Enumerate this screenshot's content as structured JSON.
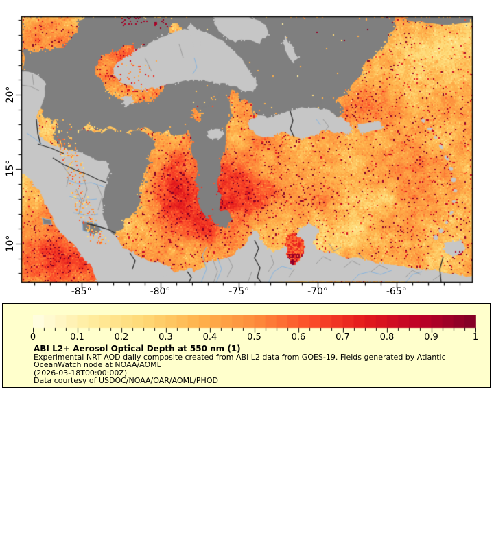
{
  "map": {
    "extent": {
      "lon_min": -88.83,
      "lon_max": -60.16,
      "lat_min": 7.37,
      "lat_max": 25.25
    },
    "x_ticks": [
      {
        "lon": -85,
        "label": "-85°"
      },
      {
        "lon": -80,
        "label": "-80°"
      },
      {
        "lon": -75,
        "label": "-75°"
      },
      {
        "lon": -70,
        "label": "-70°"
      },
      {
        "lon": -65,
        "label": "-65°"
      }
    ],
    "y_ticks": [
      {
        "lat": 20,
        "label": "20°"
      },
      {
        "lat": 15,
        "label": "15°"
      },
      {
        "lat": 10,
        "label": "10°"
      }
    ],
    "minor_tick_step_deg": 1,
    "colors": {
      "frame": "#000000",
      "no_data_gray": "#7f7f7f",
      "land_gray": "#c6c6c6",
      "country_border": "#2b2b2b",
      "admin_border": "#9a9a9a",
      "river_blue": "#85b4e0",
      "background": "#ffffff"
    }
  },
  "legend": {
    "background": "#ffffcc",
    "border_color": "#000000",
    "colorbar": {
      "min": 0,
      "max": 1,
      "block_count": 40,
      "tick_interval": 0.025,
      "labels": [
        "0",
        "0.1",
        "0.2",
        "0.3",
        "0.4",
        "0.5",
        "0.6",
        "0.7",
        "0.8",
        "0.9",
        "1"
      ],
      "label_values": [
        0,
        0.1,
        0.2,
        0.3,
        0.4,
        0.5,
        0.6,
        0.7,
        0.8,
        0.9,
        1
      ],
      "palette_name": "YlOrRd",
      "palette_stops": [
        "#ffffe5",
        "#ffeda0",
        "#fed976",
        "#feb24c",
        "#fd8d3c",
        "#fc4e2a",
        "#e31a1c",
        "#bd0026",
        "#800026"
      ]
    },
    "title": "ABI L2+ Aerosol Optical Depth at 550 nm (1)",
    "lines": [
      "Experimental NRT AOD daily composite created from ABI L2 data from GOES-19. Fields generated by Atlantic",
      "OceanWatch node at NOAA/AOML",
      "(2026-03-18T00:00:00Z)",
      "Data courtesy of USDOC/NOAA/OAR/AOML/PHOD"
    ]
  }
}
